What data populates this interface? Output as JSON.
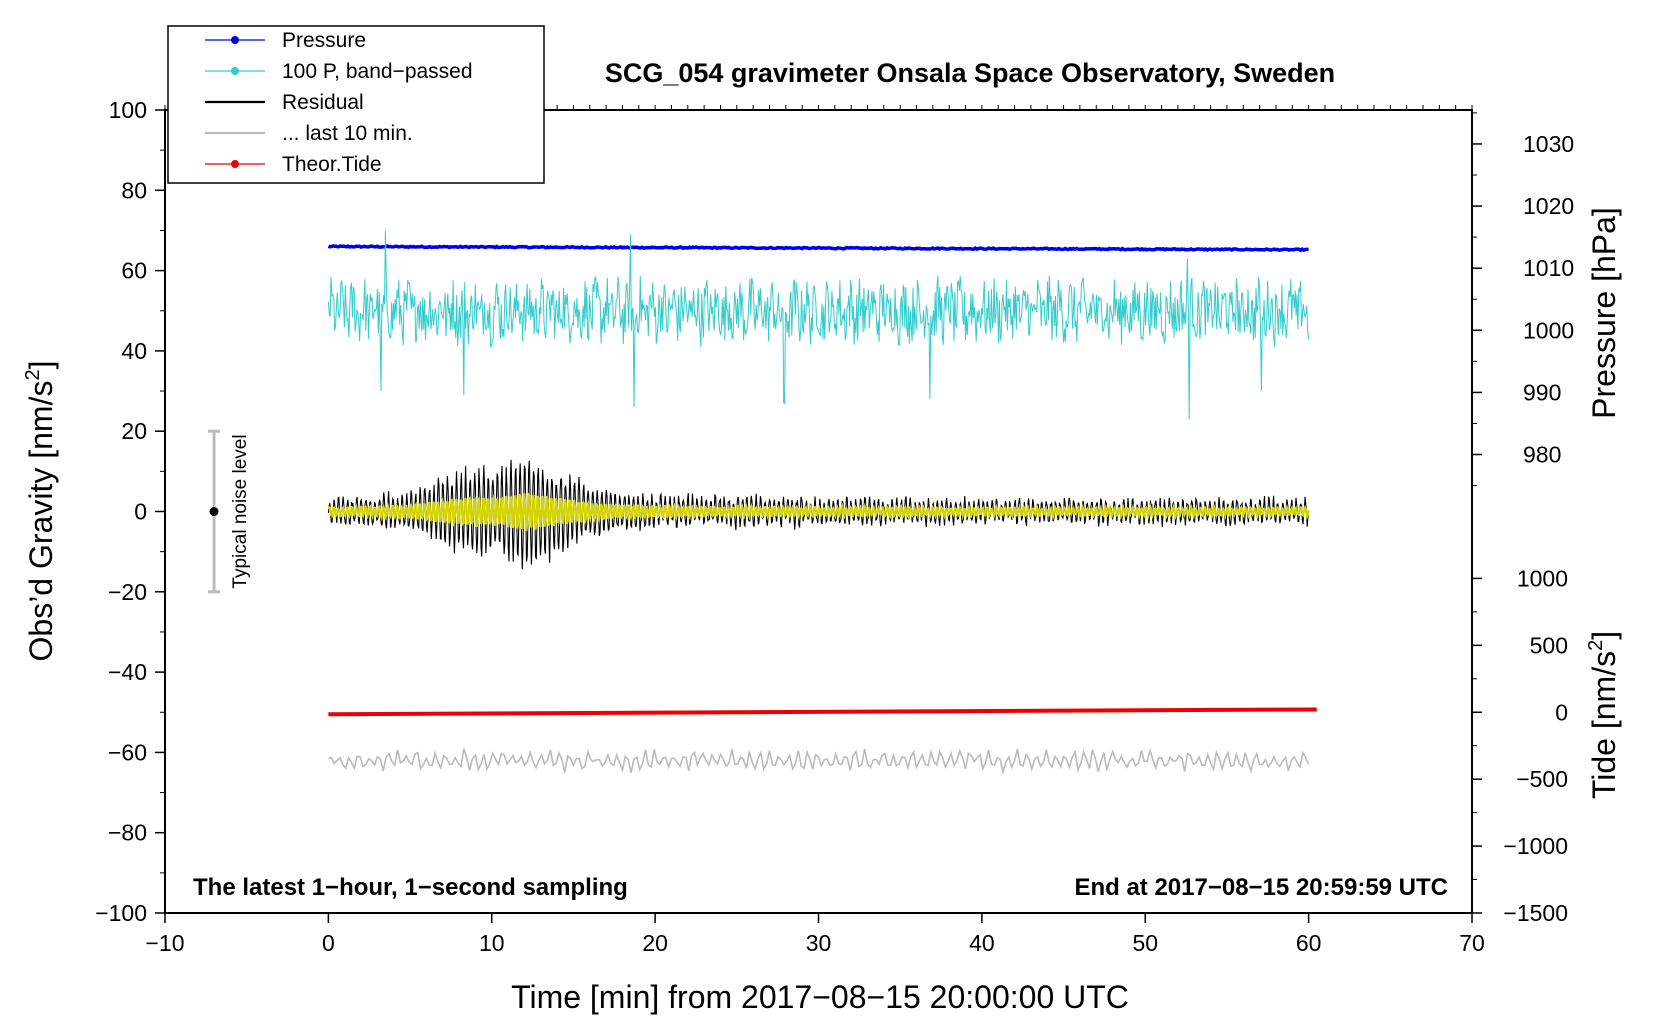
{
  "chart_data": {
    "type": "line",
    "title": "SCG_054 gravimeter Onsala Space Observatory, Sweden",
    "xlabel": "Time [min] from 2017−08−15 20:00:00 UTC",
    "ylabel_left": "Obs’d Gravity [nm/s",
    "ylabel_left_sup": "2",
    "ylabel_left_end": "]",
    "ylabel_right_pressure": "Pressure [hPa]",
    "ylabel_right_tide": "Tide [nm/s",
    "ylabel_right_tide_sup": "2",
    "ylabel_right_tide_end": "]",
    "xlim": [
      -10,
      70
    ],
    "ylim_left": [
      -100,
      100
    ],
    "x_ticks": [
      -10,
      0,
      10,
      20,
      30,
      40,
      50,
      60,
      70
    ],
    "x_tick_labels": [
      "−10",
      "0",
      "10",
      "20",
      "30",
      "40",
      "50",
      "60",
      "70"
    ],
    "y_left_ticks": [
      100,
      80,
      60,
      40,
      20,
      0,
      -20,
      -40,
      -60,
      -80,
      -100
    ],
    "y_left_tick_labels": [
      "100",
      "80",
      "60",
      "40",
      "20",
      "0",
      "−20",
      "−40",
      "−60",
      "−80",
      "−100"
    ],
    "pressure_axis": {
      "ticks": [
        1030,
        1020,
        1010,
        1000,
        990,
        980
      ],
      "tick_labels": [
        "1030",
        "1020",
        "1010",
        "1000",
        "990",
        "980"
      ],
      "ref_value": 1010,
      "ref_gravity": 60.6,
      "gravity_per_hPa": 1.547
    },
    "tide_axis": {
      "ticks": [
        1000,
        500,
        0,
        -500,
        -1000,
        -1500
      ],
      "tick_labels": [
        "1000",
        "500",
        "0",
        "−500",
        "−1000",
        "−1500"
      ],
      "ref_value": 0,
      "ref_gravity": -50,
      "gravity_per_unit": 0.03333
    },
    "legend": {
      "position": "top-left",
      "entries": [
        {
          "label": "Pressure",
          "color": "#0000ee",
          "marker": true
        },
        {
          "label": "100 P, band−passed",
          "color": "#33cccc",
          "marker": true
        },
        {
          "label": "Residual",
          "color": "#000000",
          "marker": false
        },
        {
          "label": "... last 10 min.",
          "color": "#bbbbbb",
          "marker": false
        },
        {
          "label": "Theor.Tide",
          "color": "#ee0000",
          "marker": true
        }
      ]
    },
    "series": [
      {
        "name": "Pressure",
        "color": "#0000ee",
        "axis": "left",
        "x_range": [
          0,
          60
        ],
        "start": 66.0,
        "end": 65.2,
        "amplitude": 0.3
      },
      {
        "name": "100 P, band−passed",
        "color": "#33cccc",
        "axis": "left",
        "x_range": [
          0,
          60
        ],
        "base": 50.0,
        "amplitude": 7.0,
        "spikes_down": [
          [
            3.2,
            30
          ],
          [
            8.3,
            29
          ],
          [
            18.7,
            26
          ],
          [
            27.9,
            27
          ],
          [
            36.8,
            28
          ],
          [
            52.7,
            23
          ],
          [
            57.1,
            30
          ]
        ],
        "spikes_up": [
          [
            3.5,
            70
          ],
          [
            18.5,
            69
          ],
          [
            52.6,
            63
          ]
        ]
      },
      {
        "name": "Residual",
        "color": "#000000",
        "axis": "left",
        "x_range": [
          0,
          60
        ],
        "base": 0,
        "envelope_x": [
          0,
          3,
          5,
          7,
          9,
          10.5,
          12,
          14,
          16,
          18,
          22,
          30,
          40,
          50,
          60
        ],
        "envelope_amp": [
          3,
          4,
          5,
          9,
          12,
          11,
          16,
          11,
          7,
          5,
          4,
          3.5,
          3,
          3,
          3
        ]
      },
      {
        "name": "Residual (smoothed)",
        "color": "#d4d400",
        "axis": "left",
        "x_range": [
          0,
          60
        ],
        "base": 0,
        "amplitude_scale": 0.3
      },
      {
        "name": "... last 10 min.",
        "color": "#bbbbbb",
        "axis": "left",
        "x_range": [
          0,
          60
        ],
        "base": -62,
        "amplitude": 2.5
      },
      {
        "name": "Theor.Tide",
        "color": "#ee0000",
        "axis": "left",
        "x_range": [
          0,
          60.5
        ],
        "start": -50.5,
        "end": -49.3
      }
    ],
    "noise_bar": {
      "x": -7,
      "low": -20,
      "center": 0,
      "high": 20,
      "label": "Typical noise level"
    },
    "annotation_left": "The latest 1−hour, 1−second sampling",
    "annotation_right": "End at 2017−08−15 20:59:59 UTC"
  }
}
